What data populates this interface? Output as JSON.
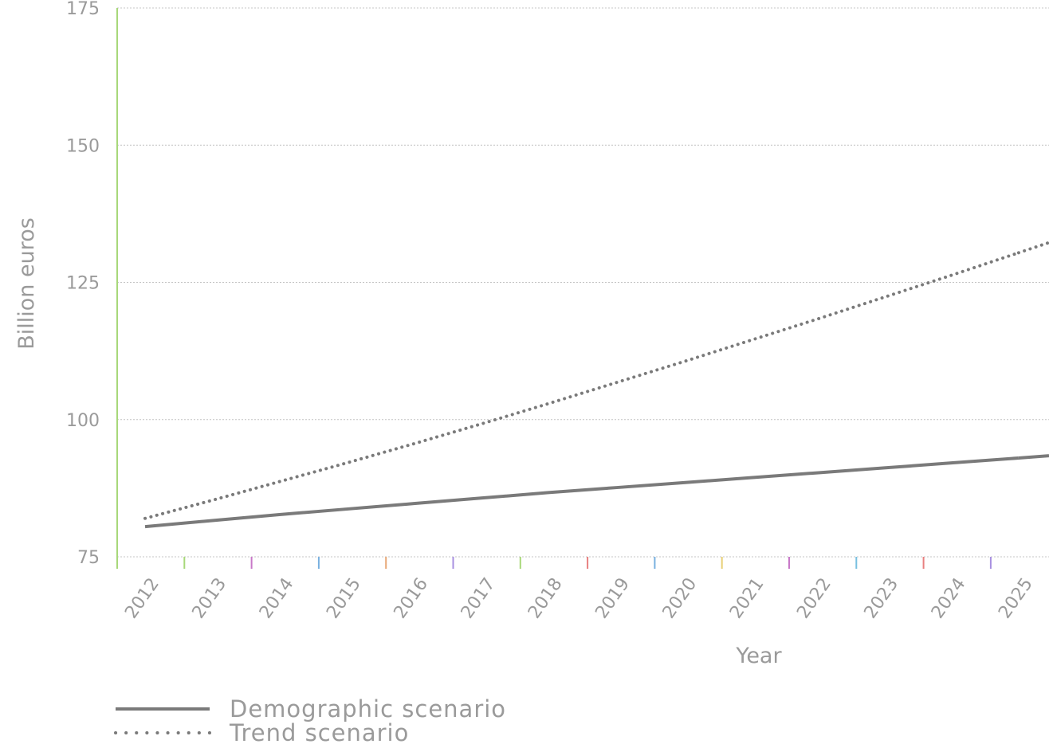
{
  "chart_data": {
    "type": "line",
    "title": "",
    "xlabel": "Year",
    "ylabel": "Billion euros",
    "x": [
      "2012",
      "2013",
      "2014",
      "2015",
      "2016",
      "2017",
      "2018",
      "2019",
      "2020",
      "2021",
      "2022",
      "2023",
      "2024",
      "2025"
    ],
    "y_ticks": [
      75,
      100,
      125,
      150,
      175
    ],
    "ylim": [
      75,
      175
    ],
    "grid": true,
    "legend_position": "bottom-left",
    "series": [
      {
        "name": "Demographic scenario",
        "style": "solid",
        "color": "#7a7a7a",
        "values": [
          80.5,
          81.6,
          82.7,
          83.7,
          84.7,
          85.7,
          86.7,
          87.6,
          88.5,
          89.4,
          90.3,
          91.2,
          92.1,
          93.0
        ]
      },
      {
        "name": "Trend scenario",
        "style": "dotted",
        "color": "#7a7a7a",
        "values": [
          82.0,
          85.3,
          88.7,
          92.1,
          95.6,
          99.2,
          102.9,
          106.7,
          110.5,
          114.4,
          118.3,
          122.3,
          126.3,
          130.4
        ]
      }
    ]
  }
}
